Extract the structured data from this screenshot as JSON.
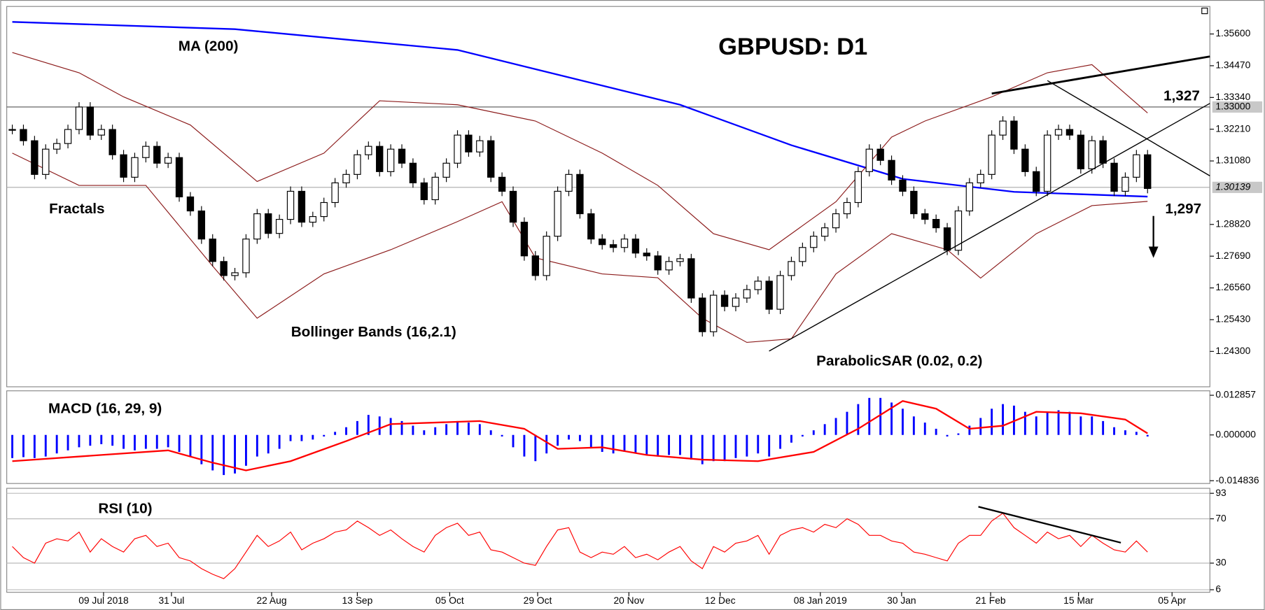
{
  "chart_data": [
    {
      "type": "candlestick",
      "title": "GBPUSD: D1",
      "close": [
        1.322,
        1.318,
        1.306,
        1.315,
        1.317,
        1.322,
        1.33,
        1.32,
        1.322,
        1.313,
        1.305,
        1.312,
        1.316,
        1.31,
        1.312,
        1.298,
        1.293,
        1.283,
        1.275,
        1.27,
        1.271,
        1.283,
        1.292,
        1.285,
        1.29,
        1.3,
        1.289,
        1.291,
        1.296,
        1.303,
        1.306,
        1.313,
        1.316,
        1.307,
        1.315,
        1.31,
        1.303,
        1.297,
        1.305,
        1.31,
        1.32,
        1.314,
        1.318,
        1.305,
        1.3,
        1.289,
        1.277,
        1.27,
        1.284,
        1.3,
        1.306,
        1.292,
        1.283,
        1.281,
        1.28,
        1.283,
        1.278,
        1.277,
        1.272,
        1.275,
        1.276,
        1.262,
        1.25,
        1.263,
        1.259,
        1.262,
        1.265,
        1.268,
        1.258,
        1.27,
        1.275,
        1.28,
        1.284,
        1.287,
        1.292,
        1.296,
        1.307,
        1.315,
        1.311,
        1.304,
        1.3,
        1.292,
        1.29,
        1.287,
        1.279,
        1.293,
        1.303,
        1.306,
        1.32,
        1.325,
        1.315,
        1.307,
        1.3,
        1.32,
        1.322,
        1.32,
        1.308,
        1.318,
        1.31,
        1.3,
        1.305,
        1.313,
        1.301
      ],
      "bull_color": "#ffffff",
      "bear_color": "#000000",
      "xlim": [
        -0.5,
        107.6
      ],
      "ylim": [
        1.2304,
        1.3658
      ],
      "yticks": [
        {
          "value": 1.356,
          "label": "1.35600"
        },
        {
          "value": 1.3447,
          "label": "1.34470"
        },
        {
          "value": 1.3334,
          "label": "1.33340"
        },
        {
          "value": 1.3221,
          "label": "1.32210"
        },
        {
          "value": 1.3108,
          "label": "1.31080"
        },
        {
          "value": 1.2882,
          "label": "1.28820"
        },
        {
          "value": 1.2769,
          "label": "1.27690"
        },
        {
          "value": 1.2656,
          "label": "1.26560"
        },
        {
          "value": 1.2543,
          "label": "1.25430"
        },
        {
          "value": 1.243,
          "label": "1.24300"
        }
      ],
      "level_line": {
        "value": 1.33,
        "label": "1.33000"
      },
      "last_price": 1.30139,
      "overlays": [
        {
          "name": "MA (200)",
          "color": "#0000ff",
          "x": [
            0,
            20,
            40,
            60,
            70,
            80,
            90,
            102
          ],
          "values": [
            1.3603,
            1.3577,
            1.3503,
            1.3308,
            1.3164,
            1.3044,
            1.2998,
            1.2981
          ]
        },
        {
          "name": "Bollinger Bands (16,2.1)",
          "color": "#8b1a1a",
          "x": [
            0,
            6,
            10,
            16,
            22,
            28,
            33,
            40,
            47,
            53,
            58,
            63,
            68,
            74,
            79,
            82,
            88,
            93,
            97,
            102
          ],
          "values": [
            1.3494,
            1.3422,
            1.3336,
            1.3236,
            1.3035,
            1.3136,
            1.3322,
            1.3308,
            1.325,
            1.3136,
            1.3021,
            1.2849,
            1.2792,
            1.2963,
            1.3193,
            1.325,
            1.3336,
            1.3422,
            1.3451,
            1.3279
          ]
        },
        {
          "color": "#8b1a1a",
          "x": [
            0,
            6,
            12,
            18,
            22,
            28,
            34,
            40,
            44,
            47,
            53,
            58,
            62,
            66,
            70,
            74,
            79,
            84,
            87,
            92,
            97,
            102
          ],
          "values": [
            1.3136,
            1.3021,
            1.3021,
            1.2734,
            1.2548,
            1.2706,
            1.2792,
            1.2892,
            1.2963,
            1.2763,
            1.2706,
            1.2692,
            1.2548,
            1.2462,
            1.2475,
            1.2706,
            1.2849,
            1.2792,
            1.2691,
            1.2849,
            1.2949,
            1.2964
          ]
        }
      ],
      "trendlines": [
        {
          "x": [
            68,
            107.6
          ],
          "values": [
            1.2431,
            1.3313
          ]
        },
        {
          "x": [
            88,
            107.6
          ],
          "values": [
            1.3348,
            1.348
          ]
        },
        {
          "x": [
            93,
            107.6
          ],
          "values": [
            1.3394,
            1.3055
          ]
        }
      ],
      "annotations": [
        "Fractals",
        "ParabolicSAR (0.02, 0.2)",
        "1,327",
        "1,297"
      ],
      "xticks": [
        {
          "value": 8.2,
          "label": "09 Jul 2018"
        },
        {
          "value": 14.3,
          "label": "31 Jul"
        },
        {
          "value": 23.3,
          "label": "22 Aug"
        },
        {
          "value": 31,
          "label": "13 Sep"
        },
        {
          "value": 39.3,
          "label": "05 Oct"
        },
        {
          "value": 47.2,
          "label": "29 Oct"
        },
        {
          "value": 55.4,
          "label": "20 Nov"
        },
        {
          "value": 63.6,
          "label": "12 Dec"
        },
        {
          "value": 72.6,
          "label": "08 Jan 2019"
        },
        {
          "value": 79.9,
          "label": "30 Jan"
        },
        {
          "value": 87.9,
          "label": "21 Feb"
        },
        {
          "value": 95.8,
          "label": "15 Mar"
        },
        {
          "value": 104.2,
          "label": "05 Apr"
        }
      ]
    },
    {
      "type": "macd",
      "title": "MACD (16, 29, 9)",
      "histogram": {
        "color": "#0000ff",
        "values": [
          -0.0075,
          -0.0072,
          -0.0075,
          -0.007,
          -0.006,
          -0.005,
          -0.004,
          -0.0035,
          -0.003,
          -0.0035,
          -0.0045,
          -0.005,
          -0.0045,
          -0.0045,
          -0.004,
          -0.0055,
          -0.007,
          -0.0095,
          -0.0115,
          -0.013,
          -0.0125,
          -0.01,
          -0.007,
          -0.006,
          -0.0045,
          -0.002,
          -0.002,
          -0.0015,
          -0.0005,
          0.001,
          0.0025,
          0.0045,
          0.0065,
          0.006,
          0.0055,
          0.0045,
          0.003,
          0.0015,
          0.0025,
          0.0035,
          0.0045,
          0.004,
          0.0035,
          0.0015,
          -0.0005,
          -0.004,
          -0.007,
          -0.0085,
          -0.006,
          -0.0035,
          -0.0015,
          -0.002,
          -0.004,
          -0.0055,
          -0.006,
          -0.0055,
          -0.006,
          -0.0065,
          -0.007,
          -0.0065,
          -0.0065,
          -0.008,
          -0.0095,
          -0.0085,
          -0.0085,
          -0.0075,
          -0.007,
          -0.006,
          -0.007,
          -0.0045,
          -0.0025,
          -0.0005,
          0.0015,
          0.0035,
          0.0055,
          0.0075,
          0.01,
          0.012,
          0.012,
          0.0105,
          0.0085,
          0.006,
          0.004,
          0.002,
          -0.0005,
          0.0005,
          0.003,
          0.0055,
          0.0085,
          0.01,
          0.0095,
          0.0075,
          0.006,
          0.0075,
          0.008,
          0.0075,
          0.006,
          0.006,
          0.0045,
          0.0025,
          0.0015,
          0.001,
          -0.0005
        ]
      },
      "signal": {
        "color": "#ff0000",
        "x": [
          0,
          8,
          14,
          18,
          21,
          25,
          30,
          34,
          38,
          42,
          46,
          49,
          53,
          57,
          62,
          67,
          72,
          76,
          80,
          83,
          86,
          89,
          92,
          96,
          100,
          102
        ],
        "values": [
          -0.0085,
          -0.0065,
          -0.005,
          -0.009,
          -0.0115,
          -0.0085,
          -0.002,
          0.0035,
          0.004,
          0.0045,
          0.002,
          -0.0045,
          -0.004,
          -0.0065,
          -0.008,
          -0.0085,
          -0.0055,
          0.002,
          0.011,
          0.0085,
          0.002,
          0.003,
          0.0075,
          0.007,
          0.005,
          0.0005
        ]
      },
      "ylim": [
        -0.01574,
        0.0143
      ],
      "yticks": [
        0.012857,
        {
          "value": 0,
          "label": "0.000000"
        },
        -0.014836
      ]
    },
    {
      "type": "line",
      "title": "RSI (10)",
      "color": "#ff0000",
      "values": [
        45,
        35,
        30,
        48,
        52,
        50,
        58,
        40,
        52,
        45,
        40,
        52,
        55,
        45,
        48,
        35,
        32,
        25,
        20,
        16,
        25,
        40,
        55,
        45,
        50,
        58,
        42,
        48,
        52,
        58,
        60,
        68,
        62,
        55,
        60,
        52,
        45,
        40,
        55,
        62,
        66,
        55,
        58,
        42,
        40,
        35,
        30,
        28,
        45,
        60,
        62,
        40,
        35,
        40,
        38,
        45,
        35,
        38,
        33,
        40,
        45,
        32,
        25,
        45,
        40,
        48,
        50,
        55,
        38,
        55,
        60,
        62,
        58,
        65,
        62,
        70,
        65,
        55,
        55,
        50,
        48,
        40,
        38,
        35,
        32,
        48,
        55,
        55,
        68,
        75,
        62,
        55,
        48,
        58,
        52,
        55,
        45,
        55,
        48,
        42,
        40,
        50,
        40
      ],
      "ylim": [
        3.7,
        97.5
      ],
      "yticks": [
        93,
        70,
        30,
        6
      ],
      "grid": true,
      "trendline": {
        "x": [
          86.8,
          99.6
        ],
        "values": [
          80.9,
          48.4
        ]
      }
    }
  ]
}
